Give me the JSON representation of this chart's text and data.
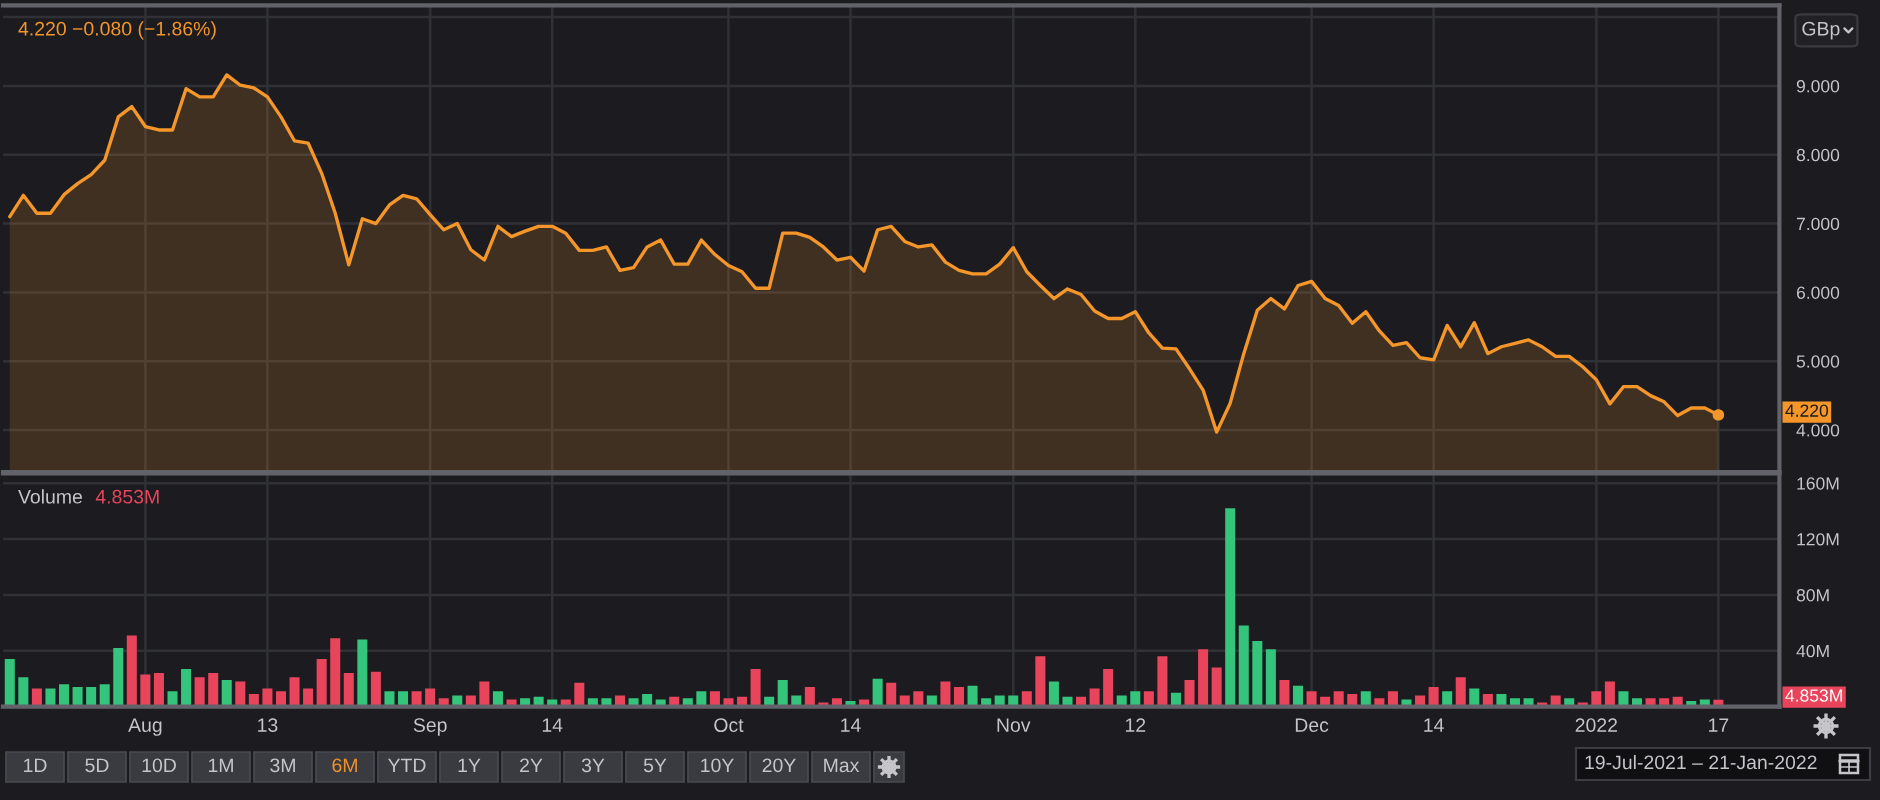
{
  "chart_data": [
    {
      "type": "area",
      "ylabel": "GBp",
      "subtitle": "4.220 −0.080 (−1.86%)",
      "categories": [
        null,
        null,
        null,
        null,
        null,
        null,
        null,
        null,
        null,
        null,
        null,
        null,
        null,
        null,
        null,
        null,
        null,
        null,
        null,
        null,
        null,
        null,
        null,
        null,
        null,
        null,
        null,
        null,
        null,
        null,
        null,
        null,
        null,
        null,
        null,
        null,
        null,
        null,
        null,
        null,
        null,
        null,
        null,
        null,
        null,
        null,
        null,
        null,
        null,
        null,
        null,
        null,
        null,
        null,
        null,
        null,
        null,
        null,
        null,
        null,
        null,
        null,
        null,
        null,
        null,
        null,
        null,
        null,
        null,
        null,
        null,
        null,
        null,
        null,
        null,
        null,
        null,
        null,
        null,
        null,
        null,
        null,
        null,
        null,
        null,
        null,
        null,
        null,
        null,
        null,
        null,
        null,
        null,
        null,
        null,
        null,
        null,
        null,
        null,
        null,
        null,
        null,
        null,
        null,
        null,
        null,
        null,
        null,
        null,
        null,
        null,
        null,
        null,
        null,
        null,
        null,
        null,
        null,
        null,
        null,
        null,
        null,
        null,
        null,
        null,
        null,
        null
      ],
      "series": [
        {
          "color": "#f5962a",
          "values": [
            7.1,
            7.41,
            7.15,
            7.15,
            7.42,
            7.58,
            7.71,
            7.92,
            8.55,
            8.7,
            8.41,
            8.36,
            8.36,
            8.96,
            8.84,
            8.84,
            9.16,
            9.01,
            8.97,
            8.84,
            8.55,
            8.2,
            8.17,
            7.73,
            7.15,
            6.4,
            7.07,
            7.0,
            7.27,
            7.41,
            7.36,
            7.13,
            6.91,
            7.0,
            6.62,
            6.47,
            6.96,
            6.81,
            6.89,
            6.96,
            6.96,
            6.86,
            6.61,
            6.61,
            6.66,
            6.32,
            6.36,
            6.66,
            6.76,
            6.41,
            6.41,
            6.76,
            6.55,
            6.39,
            6.3,
            6.06,
            6.06,
            6.86,
            6.86,
            6.8,
            6.66,
            6.47,
            6.51,
            6.31,
            6.91,
            6.96,
            6.74,
            6.66,
            6.69,
            6.44,
            6.32,
            6.27,
            6.27,
            6.41,
            6.65,
            6.3,
            6.1,
            5.91,
            6.05,
            5.97,
            5.73,
            5.62,
            5.62,
            5.72,
            5.41,
            5.19,
            5.18,
            4.89,
            4.58,
            3.97,
            4.39,
            5.11,
            5.74,
            5.91,
            5.76,
            6.1,
            6.16,
            5.91,
            5.81,
            5.55,
            5.72,
            5.44,
            5.23,
            5.27,
            5.05,
            5.02,
            5.52,
            5.21,
            5.56,
            5.11,
            5.21,
            5.26,
            5.31,
            5.21,
            5.07,
            5.07,
            4.92,
            4.73,
            4.38,
            4.63,
            4.63,
            4.5,
            4.41,
            4.21,
            4.32,
            4.32,
            4.22
          ]
        },
        {
          "type": "scatter",
          "color": "#f5962a",
          "values": [
            null,
            null,
            null,
            null,
            null,
            null,
            null,
            null,
            null,
            null,
            null,
            null,
            null,
            null,
            null,
            null,
            null,
            null,
            null,
            null,
            null,
            null,
            null,
            null,
            null,
            null,
            null,
            null,
            null,
            null,
            null,
            null,
            null,
            null,
            null,
            null,
            null,
            null,
            null,
            null,
            null,
            null,
            null,
            null,
            null,
            null,
            null,
            null,
            null,
            null,
            null,
            null,
            null,
            null,
            null,
            null,
            null,
            null,
            null,
            null,
            null,
            null,
            null,
            null,
            null,
            null,
            null,
            null,
            null,
            null,
            null,
            null,
            null,
            null,
            null,
            null,
            null,
            null,
            null,
            null,
            null,
            null,
            null,
            null,
            null,
            null,
            null,
            null,
            null,
            null,
            null,
            null,
            null,
            null,
            null,
            null,
            null,
            null,
            null,
            null,
            null,
            null,
            null,
            null,
            null,
            null,
            null,
            null,
            null,
            null,
            null,
            null,
            null,
            null,
            null,
            null,
            null,
            null,
            null,
            null,
            null,
            null,
            null,
            null,
            null,
            null,
            4.22
          ]
        }
      ],
      "ylim": [
        3.39,
        10.17
      ],
      "yticks": [
        {
          "value": 4,
          "label": "4.000"
        },
        {
          "value": 5,
          "label": "5.000"
        },
        {
          "value": 6,
          "label": "6.000"
        },
        {
          "value": 7,
          "label": "7.000"
        },
        {
          "value": 8,
          "label": "8.000"
        },
        {
          "value": 9,
          "label": "9.000"
        },
        {
          "value": 10,
          "label": null
        }
      ],
      "grid": true,
      "tick_labels": "y",
      "annotations": [
        "4.220"
      ]
    },
    {
      "type": "bar",
      "title": "Volume",
      "subtitle": "4.853M",
      "categories": [
        null,
        null,
        null,
        null,
        null,
        null,
        null,
        null,
        null,
        null,
        "Aug",
        null,
        null,
        null,
        null,
        null,
        null,
        null,
        null,
        "13",
        null,
        null,
        null,
        null,
        null,
        null,
        null,
        null,
        null,
        null,
        null,
        "Sep",
        null,
        null,
        null,
        null,
        null,
        null,
        null,
        null,
        "14",
        null,
        null,
        null,
        null,
        null,
        null,
        null,
        null,
        null,
        null,
        null,
        null,
        "Oct",
        null,
        null,
        null,
        null,
        null,
        null,
        null,
        null,
        "14",
        null,
        null,
        null,
        null,
        null,
        null,
        null,
        null,
        null,
        null,
        null,
        "Nov",
        null,
        null,
        null,
        null,
        null,
        null,
        null,
        null,
        "12",
        null,
        null,
        null,
        null,
        null,
        null,
        null,
        null,
        null,
        null,
        null,
        null,
        "Dec",
        null,
        null,
        null,
        null,
        null,
        null,
        null,
        null,
        "14",
        null,
        null,
        null,
        null,
        null,
        null,
        null,
        null,
        null,
        null,
        null,
        "2022",
        null,
        null,
        null,
        null,
        null,
        null,
        null,
        null,
        "17",
        null,
        null,
        null,
        null
      ],
      "values": [
        34,
        21,
        13,
        13,
        16,
        14,
        14,
        16,
        42,
        51,
        23,
        24,
        11,
        27,
        21,
        24,
        19,
        18,
        9,
        13,
        11,
        21,
        13,
        34,
        49,
        24,
        48,
        25,
        11,
        11,
        11,
        13,
        6,
        8,
        8,
        18,
        11,
        5,
        6,
        7,
        5,
        5,
        17,
        6,
        6,
        8,
        6,
        9,
        5,
        7,
        6,
        11,
        11,
        6,
        7,
        27,
        7,
        19,
        8,
        14,
        3,
        6,
        4,
        5,
        20,
        17,
        8,
        11,
        8,
        18,
        14,
        15,
        6,
        8,
        8,
        11,
        36,
        18,
        7,
        7,
        13,
        27,
        8,
        11,
        11,
        36,
        10,
        19,
        41,
        28,
        142,
        58,
        47,
        41,
        19,
        15,
        11,
        7,
        11,
        9,
        11,
        6,
        11,
        5,
        8,
        14,
        11,
        21,
        13,
        9,
        9,
        6,
        6,
        3,
        8,
        6,
        3,
        11,
        18,
        11,
        6,
        6,
        6,
        7,
        4,
        5,
        4.853,
        null,
        null,
        null,
        null
      ],
      "colors": [
        "#34c47c",
        "#34c47c",
        "#e8455d",
        "#34c47c",
        "#34c47c",
        "#34c47c",
        "#34c47c",
        "#34c47c",
        "#34c47c",
        "#e8455d",
        "#e8455d",
        "#e8455d",
        "#34c47c",
        "#34c47c",
        "#e8455d",
        "#e8455d",
        "#34c47c",
        "#e8455d",
        "#e8455d",
        "#e8455d",
        "#e8455d",
        "#e8455d",
        "#e8455d",
        "#e8455d",
        "#e8455d",
        "#e8455d",
        "#34c47c",
        "#e8455d",
        "#34c47c",
        "#34c47c",
        "#e8455d",
        "#e8455d",
        "#e8455d",
        "#34c47c",
        "#e8455d",
        "#e8455d",
        "#34c47c",
        "#e8455d",
        "#34c47c",
        "#34c47c",
        "#34c47c",
        "#e8455d",
        "#e8455d",
        "#34c47c",
        "#34c47c",
        "#e8455d",
        "#34c47c",
        "#34c47c",
        "#34c47c",
        "#e8455d",
        "#34c47c",
        "#34c47c",
        "#e8455d",
        "#e8455d",
        "#e8455d",
        "#e8455d",
        "#34c47c",
        "#34c47c",
        "#34c47c",
        "#e8455d",
        "#e8455d",
        "#e8455d",
        "#34c47c",
        "#e8455d",
        "#34c47c",
        "#e8455d",
        "#e8455d",
        "#e8455d",
        "#34c47c",
        "#e8455d",
        "#e8455d",
        "#34c47c",
        "#34c47c",
        "#34c47c",
        "#34c47c",
        "#e8455d",
        "#e8455d",
        "#34c47c",
        "#34c47c",
        "#e8455d",
        "#e8455d",
        "#e8455d",
        "#34c47c",
        "#34c47c",
        "#e8455d",
        "#e8455d",
        "#34c47c",
        "#e8455d",
        "#e8455d",
        "#e8455d",
        "#34c47c",
        "#34c47c",
        "#34c47c",
        "#34c47c",
        "#e8455d",
        "#34c47c",
        "#e8455d",
        "#e8455d",
        "#e8455d",
        "#e8455d",
        "#34c47c",
        "#e8455d",
        "#e8455d",
        "#34c47c",
        "#e8455d",
        "#e8455d",
        "#34c47c",
        "#e8455d",
        "#34c47c",
        "#e8455d",
        "#34c47c",
        "#34c47c",
        "#34c47c",
        "#e8455d",
        "#e8455d",
        "#34c47c",
        "#e8455d",
        "#e8455d",
        "#e8455d",
        "#34c47c",
        "#34c47c",
        "#e8455d",
        "#e8455d",
        "#e8455d",
        "#34c47c",
        "#34c47c",
        "#e8455d",
        null,
        null,
        null,
        null
      ],
      "ylim": [
        0,
        167
      ],
      "yticks": [
        {
          "value": 40,
          "label": "40M"
        },
        {
          "value": 80,
          "label": "80M"
        },
        {
          "value": 120,
          "label": "120M"
        },
        {
          "value": 160,
          "label": "160M"
        }
      ],
      "grid": true,
      "annotations": [
        "4.853M"
      ]
    },
    {
      "type": "other",
      "annotations": [
        "1D",
        "5D",
        "10D",
        "1M",
        "3M",
        "6M",
        "YTD",
        "1Y",
        "2Y",
        "3Y",
        "5Y",
        "10Y",
        "20Y",
        "Max",
        "19-Jul-2021 – 21-Jan-2022"
      ]
    }
  ]
}
